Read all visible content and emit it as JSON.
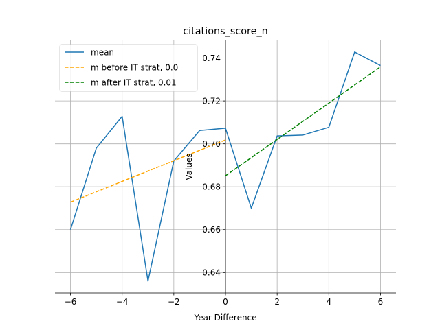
{
  "chart_data": {
    "type": "line",
    "title": "citations_score_n",
    "xlabel": "Year Difference",
    "ylabel": "Values",
    "xlim": [
      -6.6,
      6.6
    ],
    "ylim": [
      0.6305,
      0.7485
    ],
    "xticks": [
      -6,
      -4,
      -2,
      0,
      2,
      4,
      6
    ],
    "yticks": [
      0.64,
      0.66,
      0.68,
      0.7,
      0.72,
      0.74
    ],
    "xtick_labels": [
      "−6",
      "−4",
      "−2",
      "0",
      "2",
      "4",
      "6"
    ],
    "ytick_labels": [
      "0.64",
      "0.66",
      "0.68",
      "0.70",
      "0.72",
      "0.74"
    ],
    "grid": true,
    "legend_position": "top-left",
    "series": [
      {
        "name": "mean",
        "color": "#1f77b4",
        "style": "solid",
        "x": [
          -6,
          -5,
          -4,
          -3,
          -2,
          -1,
          0,
          1,
          2,
          3,
          4,
          5,
          6
        ],
        "y": [
          0.66,
          0.698,
          0.7128,
          0.636,
          0.692,
          0.7062,
          0.7073,
          0.67,
          0.7037,
          0.7041,
          0.7077,
          0.7428,
          0.7365
        ]
      },
      {
        "name": "m before IT strat, 0.0",
        "color": "#ffa500",
        "style": "dashed",
        "x": [
          -6,
          0
        ],
        "y": [
          0.6728,
          0.7018
        ]
      },
      {
        "name": "m after IT strat, 0.01",
        "color": "#008000",
        "style": "dashed",
        "x": [
          0,
          6
        ],
        "y": [
          0.6851,
          0.7359
        ]
      }
    ]
  }
}
